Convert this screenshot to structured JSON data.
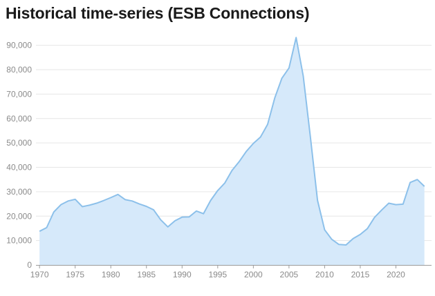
{
  "chart_data": {
    "type": "area",
    "title": "Historical time-series (ESB Connections)",
    "xlabel": "",
    "ylabel": "",
    "xlim": [
      1969.5,
      2025
    ],
    "ylim": [
      0,
      95000
    ],
    "grid": true,
    "legend": "none",
    "colors": {
      "line": "#8cc0ea",
      "fill": "#d6e9fa",
      "grid": "#e6e6e6",
      "axis": "#9a9a9a"
    },
    "y_ticks": [
      0,
      10000,
      20000,
      30000,
      40000,
      50000,
      60000,
      70000,
      80000,
      90000
    ],
    "y_tick_labels": [
      "0",
      "10,000",
      "20,000",
      "30,000",
      "40,000",
      "50,000",
      "60,000",
      "70,000",
      "80,000",
      "90,000"
    ],
    "x_ticks": [
      1970,
      1975,
      1980,
      1985,
      1990,
      1995,
      2000,
      2005,
      2010,
      2015,
      2020
    ],
    "x_tick_labels": [
      "1970",
      "1975",
      "1980",
      "1985",
      "1990",
      "1995",
      "2000",
      "2005",
      "2010",
      "2015",
      "2020"
    ],
    "series": [
      {
        "x": [
          1970,
          1971,
          1972,
          1973,
          1974,
          1975,
          1976,
          1977,
          1978,
          1979,
          1980,
          1981,
          1982,
          1983,
          1984,
          1985,
          1986,
          1987,
          1988,
          1989,
          1990,
          1991,
          1992,
          1993,
          1994,
          1995,
          1996,
          1997,
          1998,
          1999,
          2000,
          2001,
          2002,
          2003,
          2004,
          2005,
          2006,
          2007,
          2008,
          2009,
          2010,
          2011,
          2012,
          2013,
          2014,
          2015,
          2016,
          2017,
          2018,
          2019,
          2020,
          2021,
          2022,
          2023,
          2024
        ],
        "values": [
          13800,
          15300,
          21700,
          24700,
          26200,
          26900,
          23900,
          24500,
          25300,
          26400,
          27600,
          28900,
          26800,
          26200,
          25000,
          24000,
          22600,
          18500,
          15600,
          18100,
          19600,
          19700,
          22100,
          21000,
          26400,
          30500,
          33600,
          38700,
          42300,
          46500,
          49800,
          52400,
          57600,
          68400,
          76500,
          80700,
          93200,
          77400,
          52500,
          26500,
          14400,
          10500,
          8400,
          8200,
          10800,
          12500,
          14900,
          19500,
          22500,
          25300,
          24700,
          24900,
          33800,
          35000,
          32200
        ]
      }
    ]
  }
}
